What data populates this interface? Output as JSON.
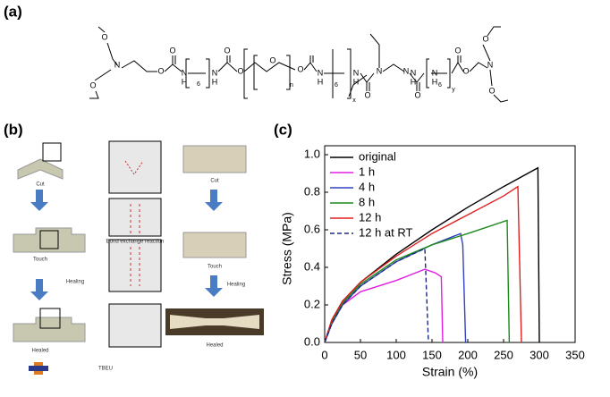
{
  "panel_labels": [
    "(a)",
    "(b)",
    "(c)"
  ],
  "structure": {
    "atoms": [
      "O",
      "N",
      "O",
      "O",
      "O",
      "N",
      "H",
      "6",
      "N",
      "H",
      "O",
      "O",
      "O",
      "n",
      "O",
      "N",
      "H",
      "6",
      "x",
      "N",
      "H",
      "O",
      "N",
      "N",
      "N",
      "H",
      "O",
      "y",
      "N",
      "H",
      "6",
      "O",
      "O",
      "N",
      "O",
      "O"
    ]
  },
  "schematic": {
    "left": [
      "Cut",
      "Bond exchange reaction",
      "Touch",
      "Healing",
      "Healed",
      "TBEU"
    ],
    "right": [
      "Cut",
      "Touch",
      "Healing",
      "Healed"
    ]
  },
  "chart_data": {
    "type": "line",
    "x_label": "Strain (%)",
    "y_label": "Stress (MPa)",
    "xlim": [
      0,
      350
    ],
    "xticks": [
      0,
      50,
      100,
      150,
      200,
      250,
      300,
      350
    ],
    "ylim": [
      0,
      1.0
    ],
    "yticks": [
      {
        "value": 0,
        "label": "0.0"
      },
      0.2,
      0.4,
      0.6,
      0.8,
      {
        "value": 1.0,
        "label": "1.0"
      }
    ],
    "legend": "upper left",
    "series": [
      {
        "name": "original",
        "color": "#000000",
        "x": [
          0,
          10,
          25,
          50,
          100,
          150,
          200,
          250,
          298,
          300
        ],
        "values": [
          0,
          0.12,
          0.22,
          0.32,
          0.47,
          0.6,
          0.72,
          0.83,
          0.93,
          0
        ]
      },
      {
        "name": "1 h",
        "color": "#e020e0",
        "x": [
          0,
          10,
          25,
          50,
          100,
          140,
          155,
          163,
          165
        ],
        "values": [
          0,
          0.1,
          0.2,
          0.27,
          0.33,
          0.39,
          0.37,
          0.35,
          0
        ]
      },
      {
        "name": "4 h",
        "color": "#3040c0",
        "x": [
          0,
          10,
          25,
          50,
          100,
          150,
          190,
          193,
          197
        ],
        "values": [
          0,
          0.1,
          0.2,
          0.3,
          0.43,
          0.52,
          0.58,
          0.52,
          0
        ]
      },
      {
        "name": "8 h",
        "color": "#1a8a1a",
        "x": [
          0,
          10,
          25,
          50,
          100,
          150,
          200,
          255,
          258
        ],
        "values": [
          0,
          0.11,
          0.21,
          0.31,
          0.44,
          0.52,
          0.58,
          0.65,
          0
        ]
      },
      {
        "name": "12 h",
        "color": "#e02020",
        "x": [
          0,
          10,
          25,
          50,
          100,
          150,
          200,
          250,
          270,
          275
        ],
        "values": [
          0,
          0.12,
          0.22,
          0.32,
          0.46,
          0.58,
          0.68,
          0.78,
          0.83,
          0
        ]
      },
      {
        "name": "12 h at RT",
        "color": "#1a2a80",
        "dash": true,
        "x": [
          0,
          10,
          25,
          50,
          100,
          140,
          145
        ],
        "values": [
          0,
          0.1,
          0.2,
          0.3,
          0.43,
          0.5,
          0
        ]
      }
    ]
  }
}
